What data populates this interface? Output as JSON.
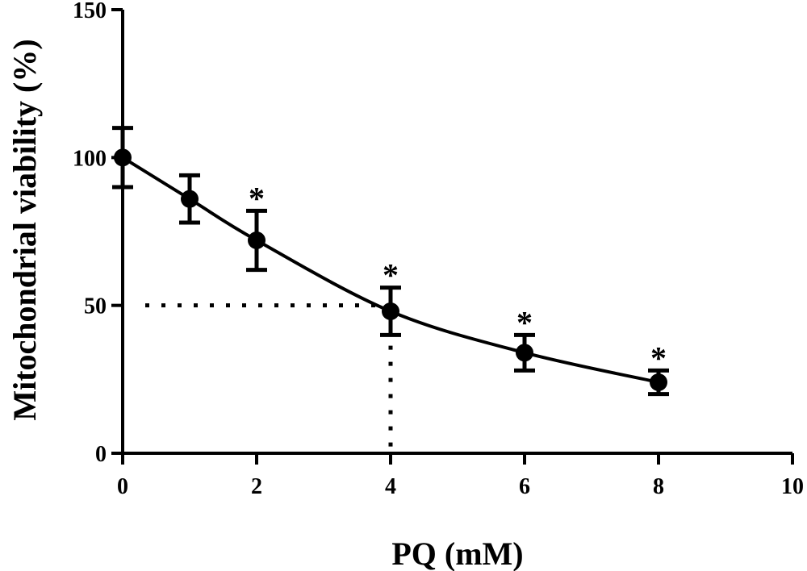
{
  "chart_data": {
    "type": "scatter",
    "xlabel": "PQ (mM)",
    "ylabel": "Mitochondrial viability (%)",
    "xlim": [
      0,
      10
    ],
    "ylim": [
      0,
      150
    ],
    "x_ticks": [
      0,
      2,
      4,
      6,
      8,
      10
    ],
    "y_ticks": [
      0,
      50,
      100,
      150
    ],
    "grid": false,
    "series": [
      {
        "x": [
          0,
          1,
          2,
          4,
          6,
          8
        ],
        "values": [
          100,
          86,
          72,
          48,
          34,
          24
        ],
        "error": [
          10,
          8,
          10,
          8,
          6,
          4
        ],
        "significance": [
          "",
          "",
          "*",
          "*",
          "*",
          "*"
        ]
      }
    ],
    "fit_curve": true,
    "reference_lines": {
      "y": 50,
      "x": 4
    }
  }
}
